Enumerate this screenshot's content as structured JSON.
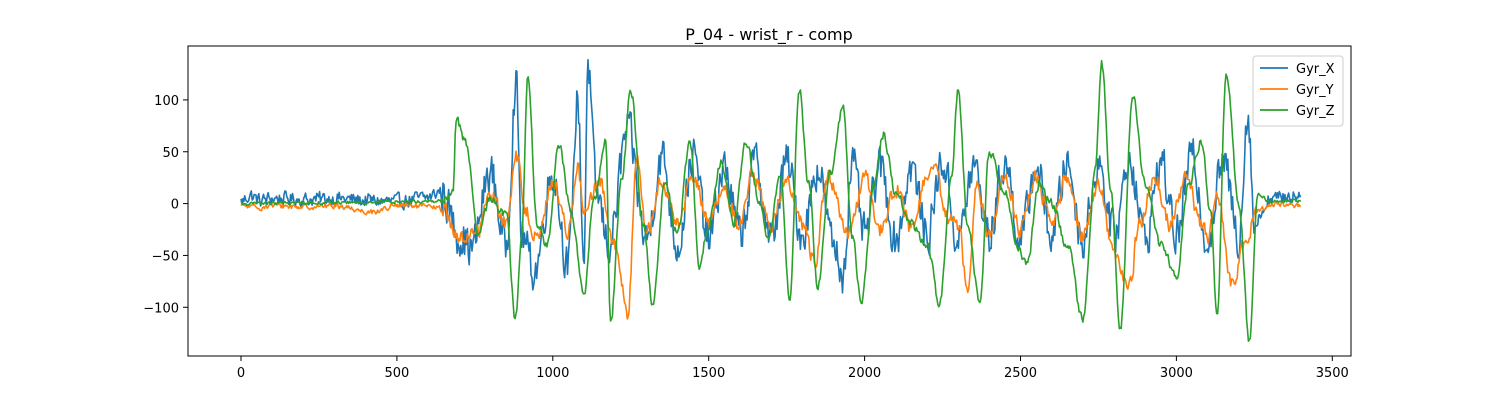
{
  "chart_data": {
    "type": "line",
    "title": "P_04 - wrist_r - comp",
    "xlabel": "",
    "ylabel": "",
    "xlim": [
      -170,
      3560
    ],
    "ylim": [
      -147,
      152
    ],
    "x_ticks": [
      0,
      500,
      1000,
      1500,
      2000,
      2500,
      3000,
      3500
    ],
    "y_ticks": [
      -100,
      -50,
      0,
      50,
      100
    ],
    "x_tick_labels": [
      "0",
      "500",
      "1000",
      "1500",
      "2000",
      "2500",
      "3000",
      "3500"
    ],
    "y_tick_labels": [
      "−100",
      "−50",
      "0",
      "50",
      "100"
    ],
    "legend_position": "top-right",
    "grid": false,
    "n_samples": 3400,
    "series": [
      {
        "name": "Gyr_X",
        "color": "#1f77b4",
        "noise": 18,
        "keypoints": [
          [
            0,
            2
          ],
          [
            30,
            8
          ],
          [
            60,
            3
          ],
          [
            100,
            5
          ],
          [
            200,
            4
          ],
          [
            300,
            5
          ],
          [
            400,
            3
          ],
          [
            500,
            2
          ],
          [
            600,
            6
          ],
          [
            640,
            12
          ],
          [
            700,
            -30
          ],
          [
            740,
            -43
          ],
          [
            800,
            30
          ],
          [
            850,
            -40
          ],
          [
            882,
            115
          ],
          [
            900,
            -30
          ],
          [
            940,
            -65
          ],
          [
            1000,
            30
          ],
          [
            1050,
            -60
          ],
          [
            1080,
            100
          ],
          [
            1100,
            -55
          ],
          [
            1112,
            135
          ],
          [
            1140,
            10
          ],
          [
            1180,
            -40
          ],
          [
            1240,
            70
          ],
          [
            1300,
            -35
          ],
          [
            1350,
            45
          ],
          [
            1400,
            -40
          ],
          [
            1450,
            45
          ],
          [
            1500,
            -35
          ],
          [
            1550,
            35
          ],
          [
            1600,
            -30
          ],
          [
            1650,
            40
          ],
          [
            1700,
            -35
          ],
          [
            1750,
            40
          ],
          [
            1800,
            -30
          ],
          [
            1850,
            35
          ],
          [
            1900,
            -40
          ],
          [
            1930,
            -67
          ],
          [
            1960,
            40
          ],
          [
            2000,
            -30
          ],
          [
            2050,
            35
          ],
          [
            2100,
            -35
          ],
          [
            2150,
            35
          ],
          [
            2200,
            -30
          ],
          [
            2250,
            40
          ],
          [
            2300,
            -35
          ],
          [
            2350,
            35
          ],
          [
            2400,
            -30
          ],
          [
            2450,
            40
          ],
          [
            2500,
            -35
          ],
          [
            2550,
            35
          ],
          [
            2600,
            -30
          ],
          [
            2650,
            40
          ],
          [
            2700,
            -35
          ],
          [
            2750,
            40
          ],
          [
            2800,
            -30
          ],
          [
            2850,
            45
          ],
          [
            2900,
            -35
          ],
          [
            2950,
            40
          ],
          [
            3000,
            -30
          ],
          [
            3050,
            45
          ],
          [
            3100,
            -35
          ],
          [
            3150,
            40
          ],
          [
            3200,
            -30
          ],
          [
            3230,
            88
          ],
          [
            3250,
            -20
          ],
          [
            3300,
            5
          ],
          [
            3400,
            8
          ]
        ]
      },
      {
        "name": "Gyr_Y",
        "color": "#ff7f0e",
        "noise": 7,
        "keypoints": [
          [
            0,
            -2
          ],
          [
            50,
            -4
          ],
          [
            100,
            -2
          ],
          [
            200,
            -3
          ],
          [
            300,
            -2
          ],
          [
            420,
            -8
          ],
          [
            500,
            -2
          ],
          [
            600,
            -3
          ],
          [
            650,
            -5
          ],
          [
            700,
            -35
          ],
          [
            760,
            -25
          ],
          [
            800,
            10
          ],
          [
            850,
            -20
          ],
          [
            885,
            45
          ],
          [
            910,
            -5
          ],
          [
            950,
            -35
          ],
          [
            1000,
            20
          ],
          [
            1050,
            -25
          ],
          [
            1080,
            35
          ],
          [
            1100,
            -10
          ],
          [
            1150,
            20
          ],
          [
            1200,
            -40
          ],
          [
            1240,
            -107
          ],
          [
            1270,
            50
          ],
          [
            1300,
            -30
          ],
          [
            1350,
            20
          ],
          [
            1400,
            -20
          ],
          [
            1450,
            25
          ],
          [
            1500,
            -15
          ],
          [
            1550,
            10
          ],
          [
            1600,
            -20
          ],
          [
            1640,
            30
          ],
          [
            1700,
            -20
          ],
          [
            1750,
            25
          ],
          [
            1800,
            -20
          ],
          [
            1840,
            -55
          ],
          [
            1880,
            25
          ],
          [
            1950,
            -30
          ],
          [
            2000,
            25
          ],
          [
            2050,
            -25
          ],
          [
            2100,
            15
          ],
          [
            2150,
            -25
          ],
          [
            2200,
            25
          ],
          [
            2230,
            30
          ],
          [
            2260,
            -10
          ],
          [
            2300,
            -20
          ],
          [
            2330,
            -78
          ],
          [
            2360,
            20
          ],
          [
            2400,
            -30
          ],
          [
            2450,
            25
          ],
          [
            2500,
            -25
          ],
          [
            2550,
            25
          ],
          [
            2600,
            -20
          ],
          [
            2650,
            25
          ],
          [
            2700,
            -30
          ],
          [
            2750,
            20
          ],
          [
            2800,
            -50
          ],
          [
            2850,
            -80
          ],
          [
            2880,
            -20
          ],
          [
            2930,
            25
          ],
          [
            2980,
            -20
          ],
          [
            3030,
            25
          ],
          [
            3080,
            -20
          ],
          [
            3100,
            -35
          ],
          [
            3130,
            10
          ],
          [
            3180,
            -78
          ],
          [
            3220,
            -40
          ],
          [
            3260,
            -8
          ],
          [
            3300,
            0
          ],
          [
            3400,
            -2
          ]
        ]
      },
      {
        "name": "Gyr_Z",
        "color": "#2ca02c",
        "noise": 4,
        "keypoints": [
          [
            0,
            0
          ],
          [
            300,
            1
          ],
          [
            600,
            2
          ],
          [
            650,
            3
          ],
          [
            680,
            10
          ],
          [
            690,
            82
          ],
          [
            720,
            60
          ],
          [
            760,
            -30
          ],
          [
            800,
            5
          ],
          [
            850,
            -10
          ],
          [
            880,
            -112
          ],
          [
            900,
            -30
          ],
          [
            920,
            120
          ],
          [
            950,
            -20
          ],
          [
            980,
            -40
          ],
          [
            1020,
            55
          ],
          [
            1060,
            -10
          ],
          [
            1100,
            -88
          ],
          [
            1130,
            0
          ],
          [
            1170,
            60
          ],
          [
            1185,
            -115
          ],
          [
            1220,
            20
          ],
          [
            1250,
            110
          ],
          [
            1290,
            -20
          ],
          [
            1320,
            -95
          ],
          [
            1360,
            20
          ],
          [
            1400,
            -30
          ],
          [
            1440,
            60
          ],
          [
            1470,
            -60
          ],
          [
            1500,
            -20
          ],
          [
            1540,
            40
          ],
          [
            1580,
            -20
          ],
          [
            1620,
            60
          ],
          [
            1660,
            5
          ],
          [
            1690,
            -38
          ],
          [
            1730,
            30
          ],
          [
            1760,
            -95
          ],
          [
            1790,
            112
          ],
          [
            1820,
            20
          ],
          [
            1850,
            -80
          ],
          [
            1890,
            30
          ],
          [
            1930,
            92
          ],
          [
            1960,
            -30
          ],
          [
            1990,
            -95
          ],
          [
            2030,
            20
          ],
          [
            2060,
            67
          ],
          [
            2100,
            10
          ],
          [
            2150,
            -20
          ],
          [
            2200,
            -40
          ],
          [
            2240,
            -95
          ],
          [
            2280,
            30
          ],
          [
            2300,
            112
          ],
          [
            2330,
            -20
          ],
          [
            2370,
            -95
          ],
          [
            2400,
            50
          ],
          [
            2450,
            10
          ],
          [
            2490,
            -40
          ],
          [
            2520,
            -60
          ],
          [
            2560,
            20
          ],
          [
            2600,
            0
          ],
          [
            2650,
            -40
          ],
          [
            2700,
            -110
          ],
          [
            2740,
            30
          ],
          [
            2760,
            135
          ],
          [
            2790,
            10
          ],
          [
            2820,
            -120
          ],
          [
            2860,
            104
          ],
          [
            2900,
            20
          ],
          [
            2950,
            -40
          ],
          [
            3000,
            -70
          ],
          [
            3040,
            20
          ],
          [
            3080,
            60
          ],
          [
            3110,
            -10
          ],
          [
            3130,
            -107
          ],
          [
            3160,
            127
          ],
          [
            3200,
            0
          ],
          [
            3235,
            -133
          ],
          [
            3260,
            10
          ],
          [
            3300,
            2
          ],
          [
            3400,
            3
          ]
        ]
      }
    ]
  }
}
